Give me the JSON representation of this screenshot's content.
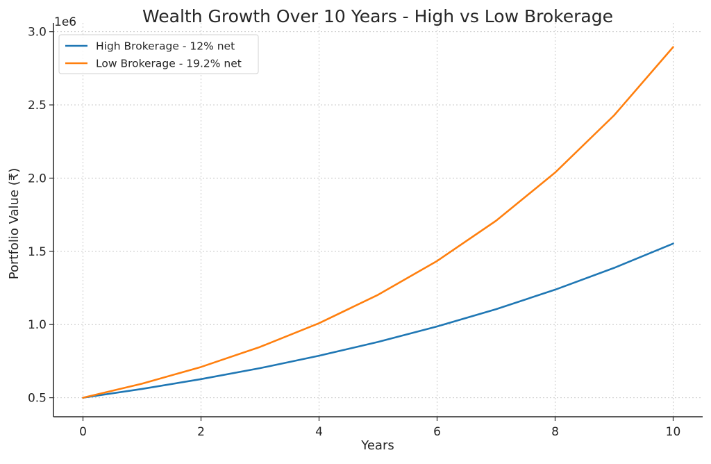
{
  "chart_data": {
    "type": "line",
    "title": "Wealth Growth Over 10 Years - High vs Low Brokerage",
    "xlabel": "Years",
    "ylabel": "Portfolio Value (₹)",
    "y_offset_label": "1e6",
    "y_multiplier": 1000000,
    "x": [
      0,
      1,
      2,
      3,
      4,
      5,
      6,
      7,
      8,
      9,
      10
    ],
    "xlim": [
      -0.5,
      10.5
    ],
    "ylim": [
      0.37,
      3.06
    ],
    "xticks": [
      0,
      2,
      4,
      6,
      8,
      10
    ],
    "xtick_labels": [
      "0",
      "2",
      "4",
      "6",
      "8",
      "10"
    ],
    "yticks": [
      0.5,
      1.0,
      1.5,
      2.0,
      2.5,
      3.0
    ],
    "ytick_labels": [
      "0.5",
      "1.0",
      "1.5",
      "2.0",
      "2.5",
      "3.0"
    ],
    "grid": true,
    "legend_position": "top-left",
    "series": [
      {
        "name": "High Brokerage - 12% net",
        "color": "#1f77b4",
        "values": [
          0.5,
          0.56,
          0.627,
          0.702,
          0.787,
          0.881,
          0.987,
          1.105,
          1.238,
          1.387,
          1.553
        ]
      },
      {
        "name": "Low Brokerage - 19.2% net",
        "color": "#ff7f0e",
        "values": [
          0.5,
          0.596,
          0.71,
          0.847,
          1.009,
          1.203,
          1.434,
          1.709,
          2.038,
          2.429,
          2.895
        ]
      }
    ]
  }
}
